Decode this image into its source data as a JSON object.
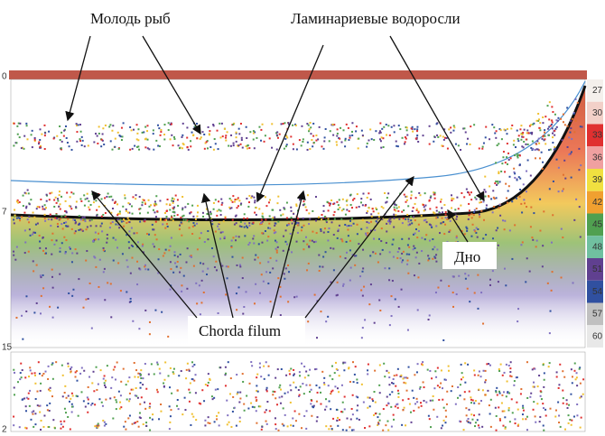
{
  "annotations": {
    "fish_fry": "Молодь рыб",
    "kelp": "Ламинариевые  водоросли",
    "chorda": "Chorda filum",
    "bottom": "Дно"
  },
  "depth_scale": [
    "0",
    "7",
    "15",
    "2"
  ],
  "color_scale": [
    "27",
    "30",
    "33",
    "36",
    "39",
    "42",
    "45",
    "48",
    "51",
    "54",
    "57",
    "60"
  ]
}
